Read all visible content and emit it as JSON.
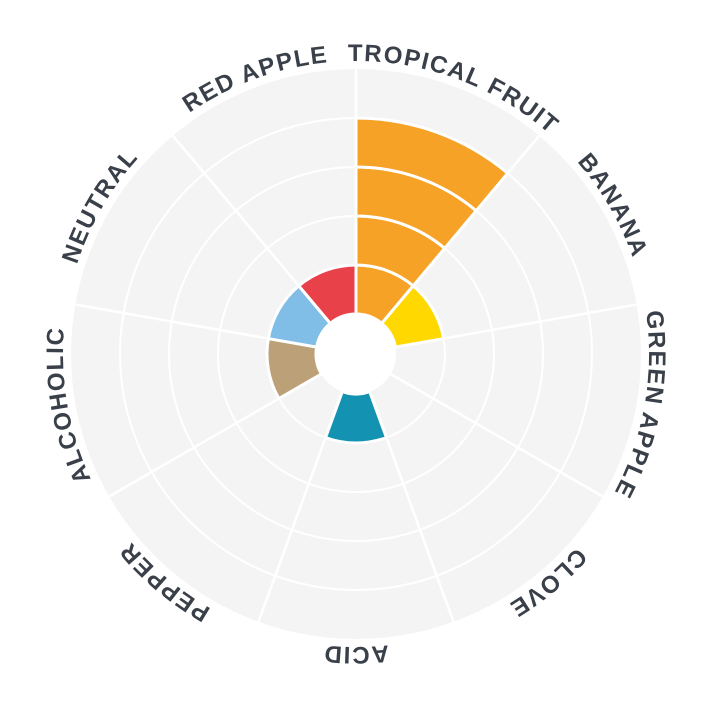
{
  "chart_data": {
    "type": "polar_rose",
    "description": "Aroma wheel / radial sensory profile chart with 9 equal 40-degree sectors, radial scale 0 to 5 rings, no numeric tick labels shown",
    "categories": [
      "TROPICAL FRUIT",
      "BANANA",
      "GREEN APPLE",
      "CLOVE",
      "ACID",
      "PEPPER",
      "ALCOHOLIC",
      "NEUTRAL",
      "RED APPLE"
    ],
    "values": [
      4,
      1,
      0,
      0,
      1,
      0,
      1,
      1,
      1
    ],
    "series_colors": [
      "#F5A226",
      "#FFD800",
      null,
      null,
      "#1492B2",
      null,
      "#BCA077",
      "#81BEE7",
      "#E84149"
    ],
    "rlim": [
      0,
      5
    ],
    "rings": 5,
    "sector_angle_deg": 40,
    "start_angle_deg": 0,
    "grid": "on",
    "legend": "none",
    "colors": {
      "disk_fill": "#F4F4F5",
      "grid_line": "#FFFFFF",
      "separator": "#FFFFFF",
      "hole_fill": "#FFFFFF",
      "label_text": "#3A4049",
      "page_background": "#FFFFFF"
    }
  }
}
